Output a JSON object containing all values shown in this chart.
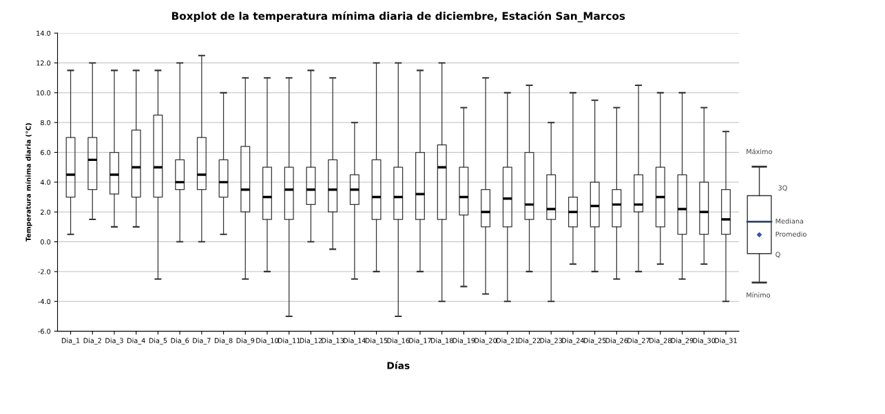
{
  "chart_data": {
    "type": "box",
    "title": "Boxplot de la temperatura mínima diaria de diciembre, Estación San_Marcos",
    "xlabel": "Días",
    "ylabel": "Temperatura mínima diaria (°C)",
    "categories": [
      "Dia_1",
      "Dia_2",
      "Dia_3",
      "Dia_4",
      "Dia_5",
      "Dia_6",
      "Dia_7",
      "Dia_8",
      "Dia_9",
      "Dia_10",
      "Dia_11",
      "Dia_12",
      "Dia_13",
      "Dia_14",
      "Dia_15",
      "Dia_16",
      "Dia_17",
      "Dia_18",
      "Dia_19",
      "Dia_20",
      "Dia_21",
      "Dia_22",
      "Dia_23",
      "Dia_24",
      "Dia_25",
      "Dia_26",
      "Dia_27",
      "Dia_28",
      "Dia_29",
      "Dia_30",
      "Dia_31"
    ],
    "boxes": [
      {
        "low": 0.5,
        "q1": 3,
        "median": 4.5,
        "q3": 7,
        "high": 11.5
      },
      {
        "low": 1.5,
        "q1": 3.5,
        "median": 5.5,
        "q3": 7,
        "high": 12
      },
      {
        "low": 1,
        "q1": 3.2,
        "median": 4.5,
        "q3": 6,
        "high": 11.5
      },
      {
        "low": 1,
        "q1": 3,
        "median": 5,
        "q3": 7.5,
        "high": 11.5
      },
      {
        "low": -2.5,
        "q1": 3,
        "median": 5,
        "q3": 8.5,
        "high": 11.5
      },
      {
        "low": 0,
        "q1": 3.5,
        "median": 4,
        "q3": 5.5,
        "high": 12
      },
      {
        "low": 0,
        "q1": 3.5,
        "median": 4.5,
        "q3": 7,
        "high": 12.5
      },
      {
        "low": 0.5,
        "q1": 3,
        "median": 4,
        "q3": 5.5,
        "high": 10
      },
      {
        "low": -2.5,
        "q1": 2,
        "median": 3.5,
        "q3": 6.4,
        "high": 11
      },
      {
        "low": -2,
        "q1": 1.5,
        "median": 3,
        "q3": 5,
        "high": 11
      },
      {
        "low": -5,
        "q1": 1.5,
        "median": 3.5,
        "q3": 5,
        "high": 11
      },
      {
        "low": 0,
        "q1": 2.5,
        "median": 3.5,
        "q3": 5,
        "high": 11.5
      },
      {
        "low": -0.5,
        "q1": 2,
        "median": 3.5,
        "q3": 5.5,
        "high": 11
      },
      {
        "low": -2.5,
        "q1": 2.5,
        "median": 3.5,
        "q3": 4.5,
        "high": 8
      },
      {
        "low": -2,
        "q1": 1.5,
        "median": 3,
        "q3": 5.5,
        "high": 12
      },
      {
        "low": -5,
        "q1": 1.5,
        "median": 3,
        "q3": 5,
        "high": 12
      },
      {
        "low": -2,
        "q1": 1.5,
        "median": 3.2,
        "q3": 6,
        "high": 11.5
      },
      {
        "low": -4,
        "q1": 1.5,
        "median": 5,
        "q3": 6.5,
        "high": 12
      },
      {
        "low": -3,
        "q1": 1.8,
        "median": 3,
        "q3": 5,
        "high": 9
      },
      {
        "low": -3.5,
        "q1": 1,
        "median": 2,
        "q3": 3.5,
        "high": 11
      },
      {
        "low": -4,
        "q1": 1,
        "median": 2.9,
        "q3": 5,
        "high": 10
      },
      {
        "low": -2,
        "q1": 1.5,
        "median": 2.5,
        "q3": 6,
        "high": 10.5
      },
      {
        "low": -4,
        "q1": 1.5,
        "median": 2.2,
        "q3": 4.5,
        "high": 8
      },
      {
        "low": -1.5,
        "q1": 1,
        "median": 2,
        "q3": 3,
        "high": 10
      },
      {
        "low": -2,
        "q1": 1,
        "median": 2.4,
        "q3": 4,
        "high": 9.5
      },
      {
        "low": -2.5,
        "q1": 1,
        "median": 2.5,
        "q3": 3.5,
        "high": 9
      },
      {
        "low": -2,
        "q1": 2,
        "median": 2.5,
        "q3": 4.5,
        "high": 10.5
      },
      {
        "low": -1.5,
        "q1": 1,
        "median": 3,
        "q3": 5,
        "high": 10
      },
      {
        "low": -2.5,
        "q1": 0.5,
        "median": 2.2,
        "q3": 4.5,
        "high": 10
      },
      {
        "low": -1.5,
        "q1": 0.5,
        "median": 2,
        "q3": 4,
        "high": 9
      },
      {
        "low": -4,
        "q1": 0.5,
        "median": 1.5,
        "q3": 3.5,
        "high": 7.4
      }
    ],
    "ylim": [
      -6,
      14
    ],
    "yticks": [
      {
        "value": -6,
        "label": "-6.0"
      },
      {
        "value": -4,
        "label": "-4.0"
      },
      {
        "value": -2,
        "label": "-2.0"
      },
      {
        "value": 0,
        "label": "0.0"
      },
      {
        "value": 2,
        "label": "2.0"
      },
      {
        "value": 4,
        "label": "4.0"
      },
      {
        "value": 6,
        "label": "6.0"
      },
      {
        "value": 8,
        "label": "8.0"
      },
      {
        "value": 10,
        "label": "10.0"
      },
      {
        "value": 12,
        "label": "12.0"
      },
      {
        "value": 14,
        "label": "14.0"
      }
    ],
    "grid": "y",
    "annotations": [
      "Máximo",
      "3Q",
      "Mediana",
      "Promedio",
      "Q",
      "Mínimo"
    ]
  }
}
